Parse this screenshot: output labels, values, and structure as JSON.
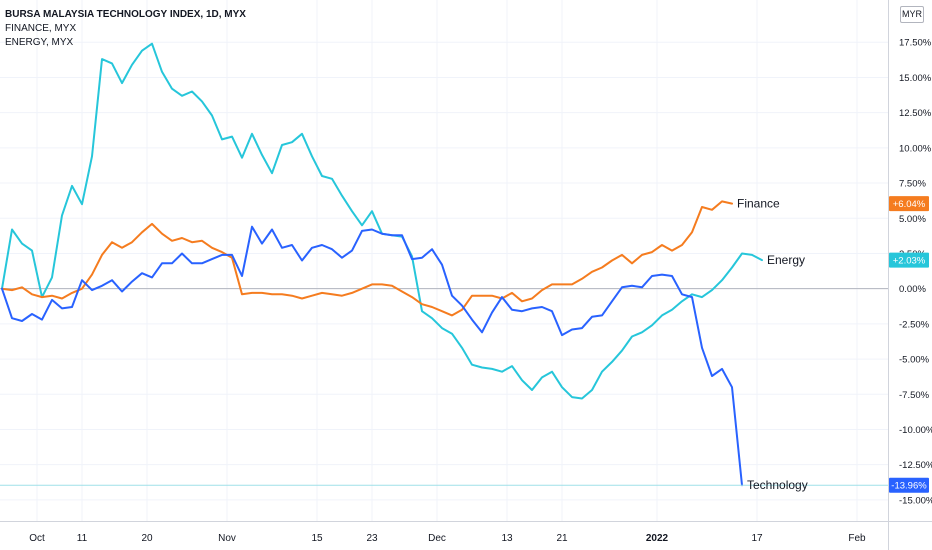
{
  "legend": {
    "main": "BURSA MALAYSIA TECHNOLOGY INDEX, 1D, MYX",
    "s2": "FINANCE, MYX",
    "s3": "ENERGY, MYX"
  },
  "currency_button": "MYR",
  "chart_data": {
    "type": "line",
    "x_unit": "trading day index",
    "ylim": [
      -16.5,
      20.5
    ],
    "y_format": "percent",
    "yticks": [
      "17.50%",
      "15.00%",
      "12.50%",
      "10.00%",
      "7.50%",
      "5.00%",
      "2.50%",
      "0.00%",
      "-2.50%",
      "-5.00%",
      "-7.50%",
      "-10.00%",
      "-12.50%",
      "-15.00%"
    ],
    "ytick_values": [
      17.5,
      15,
      12.5,
      10,
      7.5,
      5,
      2.5,
      0,
      -2.5,
      -5,
      -7.5,
      -10,
      -12.5,
      -15
    ],
    "xticks": [
      {
        "label": "Oct",
        "day": 3.5,
        "bold": false
      },
      {
        "label": "11",
        "day": 8,
        "bold": false
      },
      {
        "label": "20",
        "day": 14.5,
        "bold": false
      },
      {
        "label": "Nov",
        "day": 22.5,
        "bold": false
      },
      {
        "label": "15",
        "day": 31.5,
        "bold": false
      },
      {
        "label": "23",
        "day": 37,
        "bold": false
      },
      {
        "label": "Dec",
        "day": 43.5,
        "bold": false
      },
      {
        "label": "13",
        "day": 50.5,
        "bold": false
      },
      {
        "label": "21",
        "day": 56,
        "bold": false
      },
      {
        "label": "2022",
        "day": 65.5,
        "bold": true
      },
      {
        "label": "17",
        "day": 75.5,
        "bold": false
      },
      {
        "label": "Feb",
        "day": 85.5,
        "bold": false
      }
    ],
    "baseline": 0,
    "series": [
      {
        "name": "Technology",
        "end_label": "Technology",
        "badge": "-13.96%",
        "color": "#2962ff",
        "values": [
          0.0,
          -2.1,
          -2.3,
          -1.8,
          -2.2,
          -0.8,
          -1.4,
          -1.3,
          0.6,
          -0.1,
          0.2,
          0.6,
          -0.2,
          0.5,
          1.1,
          0.8,
          1.8,
          1.8,
          2.5,
          1.8,
          1.8,
          2.1,
          2.4,
          2.4,
          0.9,
          4.4,
          3.2,
          4.2,
          2.9,
          3.1,
          2.0,
          2.9,
          3.1,
          2.8,
          2.2,
          2.7,
          4.1,
          4.2,
          3.9,
          3.8,
          3.8,
          2.1,
          2.2,
          2.8,
          1.7,
          -0.5,
          -1.2,
          -2.2,
          -3.1,
          -1.7,
          -0.6,
          -1.5,
          -1.6,
          -1.4,
          -1.3,
          -1.6,
          -3.3,
          -2.9,
          -2.8,
          -2.0,
          -1.9,
          -0.9,
          0.1,
          0.2,
          0.1,
          0.9,
          1.0,
          0.9,
          -0.4,
          -0.6,
          -4.2,
          -6.2,
          -5.7,
          -7.0,
          -13.96
        ]
      },
      {
        "name": "Finance",
        "end_label": "Finance",
        "badge": "+6.04%",
        "color": "#f57c1f",
        "values": [
          0.0,
          -0.1,
          0.1,
          -0.4,
          -0.6,
          -0.5,
          -0.7,
          -0.3,
          0.0,
          1.0,
          2.4,
          3.3,
          2.9,
          3.3,
          4.0,
          4.6,
          3.9,
          3.4,
          3.6,
          3.3,
          3.4,
          2.9,
          2.6,
          2.2,
          -0.4,
          -0.3,
          -0.3,
          -0.4,
          -0.4,
          -0.5,
          -0.7,
          -0.5,
          -0.3,
          -0.4,
          -0.5,
          -0.3,
          0.0,
          0.3,
          0.3,
          0.2,
          -0.2,
          -0.6,
          -1.1,
          -1.3,
          -1.6,
          -1.9,
          -1.5,
          -0.5,
          -0.5,
          -0.5,
          -0.7,
          -0.3,
          -0.9,
          -0.7,
          -0.1,
          0.3,
          0.3,
          0.3,
          0.7,
          1.2,
          1.5,
          2.0,
          2.4,
          1.8,
          2.4,
          2.6,
          3.1,
          2.7,
          3.1,
          4.0,
          5.8,
          5.6,
          6.2,
          6.04
        ]
      },
      {
        "name": "Energy",
        "end_label": "Energy",
        "badge": "+2.03%",
        "color": "#26c6da",
        "values": [
          0.0,
          4.2,
          3.2,
          2.7,
          -0.6,
          0.8,
          5.2,
          7.3,
          6.0,
          9.4,
          16.3,
          16.0,
          14.6,
          15.9,
          16.9,
          17.4,
          15.4,
          14.2,
          13.7,
          14.0,
          13.3,
          12.3,
          10.6,
          10.8,
          9.3,
          11.0,
          9.5,
          8.2,
          10.2,
          10.4,
          11.0,
          9.4,
          8.0,
          7.8,
          6.6,
          5.5,
          4.5,
          5.5,
          3.9,
          3.8,
          3.7,
          2.3,
          -1.6,
          -2.1,
          -2.8,
          -3.2,
          -4.2,
          -5.4,
          -5.6,
          -5.7,
          -5.9,
          -5.5,
          -6.5,
          -7.2,
          -6.3,
          -5.9,
          -7.0,
          -7.7,
          -7.8,
          -7.2,
          -5.9,
          -5.2,
          -4.4,
          -3.4,
          -3.1,
          -2.6,
          -1.9,
          -1.5,
          -0.9,
          -0.4,
          -0.6,
          -0.1,
          0.6,
          1.5,
          2.5,
          2.4,
          2.03
        ]
      }
    ]
  }
}
